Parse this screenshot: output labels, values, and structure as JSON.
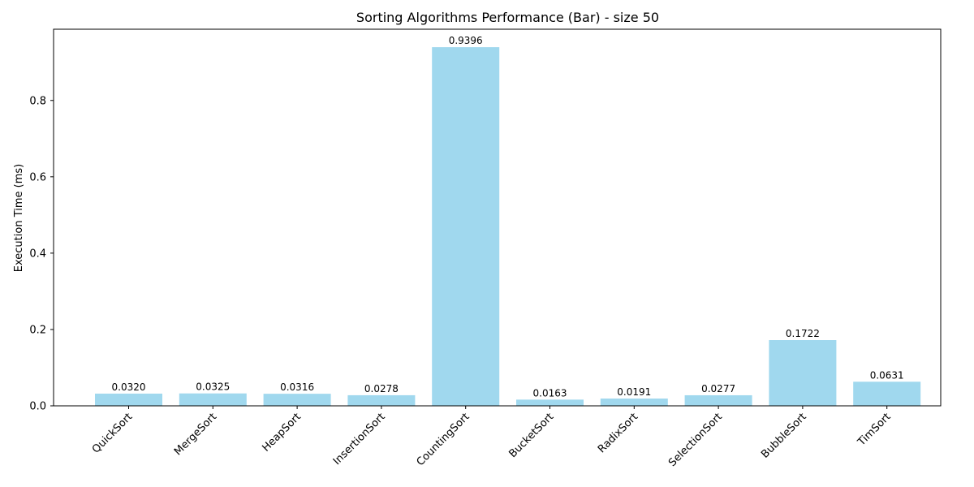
{
  "chart_data": {
    "type": "bar",
    "title": "Sorting Algorithms Performance (Bar) - size 50",
    "xlabel": "",
    "ylabel": "Execution Time (ms)",
    "categories": [
      "QuickSort",
      "MergeSort",
      "HeapSort",
      "InsertionSort",
      "CountingSort",
      "BucketSort",
      "RadixSort",
      "SelectionSort",
      "BubbleSort",
      "TimSort"
    ],
    "values": [
      0.032,
      0.0325,
      0.0316,
      0.0278,
      0.9396,
      0.0163,
      0.0191,
      0.0277,
      0.1722,
      0.0631
    ],
    "value_labels": [
      "0.0320",
      "0.0325",
      "0.0316",
      "0.0278",
      "0.9396",
      "0.0163",
      "0.0191",
      "0.0277",
      "0.1722",
      "0.0631"
    ],
    "ylim": [
      0,
      0.9866
    ],
    "yticks": [
      0.0,
      0.2,
      0.4,
      0.6,
      0.8
    ],
    "ytick_labels": [
      "0.0",
      "0.2",
      "0.4",
      "0.6",
      "0.8"
    ],
    "bar_color": "#a0d8ee",
    "grid": false,
    "legend": "none"
  }
}
